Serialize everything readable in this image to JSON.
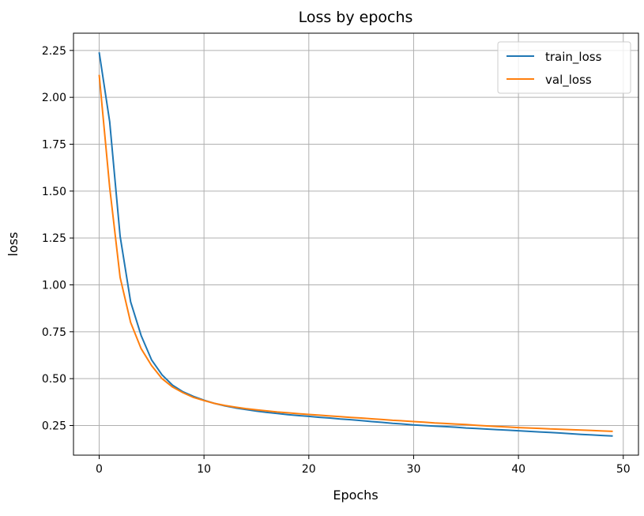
{
  "chart_data": {
    "type": "line",
    "title": "Loss by epochs",
    "xlabel": "Epochs",
    "ylabel": "loss",
    "xlim": [
      -2.45,
      51.45
    ],
    "ylim": [
      0.092,
      2.342
    ],
    "xticks": [
      0,
      10,
      20,
      30,
      40,
      50
    ],
    "yticks": [
      0.25,
      0.5,
      0.75,
      1.0,
      1.25,
      1.5,
      1.75,
      2.0,
      2.25
    ],
    "grid": true,
    "legend_placement": "upper-right",
    "x": [
      0,
      1,
      2,
      3,
      4,
      5,
      6,
      7,
      8,
      9,
      10,
      11,
      12,
      13,
      14,
      15,
      16,
      17,
      18,
      19,
      20,
      21,
      22,
      23,
      24,
      25,
      26,
      27,
      28,
      29,
      30,
      31,
      32,
      33,
      34,
      35,
      36,
      37,
      38,
      39,
      40,
      41,
      42,
      43,
      44,
      45,
      46,
      47,
      48,
      49
    ],
    "series": [
      {
        "name": "train_loss",
        "color": "#1f77b4",
        "values": [
          2.24,
          1.87,
          1.26,
          0.91,
          0.73,
          0.6,
          0.52,
          0.465,
          0.43,
          0.405,
          0.385,
          0.368,
          0.355,
          0.344,
          0.335,
          0.327,
          0.32,
          0.314,
          0.308,
          0.303,
          0.299,
          0.294,
          0.29,
          0.285,
          0.281,
          0.276,
          0.271,
          0.267,
          0.262,
          0.258,
          0.253,
          0.25,
          0.247,
          0.244,
          0.241,
          0.237,
          0.234,
          0.231,
          0.228,
          0.225,
          0.222,
          0.219,
          0.216,
          0.213,
          0.21,
          0.206,
          0.203,
          0.2,
          0.197,
          0.194
        ]
      },
      {
        "name": "val_loss",
        "color": "#ff7f0e",
        "values": [
          2.12,
          1.52,
          1.04,
          0.8,
          0.66,
          0.57,
          0.5,
          0.455,
          0.425,
          0.4,
          0.383,
          0.368,
          0.357,
          0.348,
          0.34,
          0.334,
          0.328,
          0.322,
          0.318,
          0.313,
          0.309,
          0.305,
          0.301,
          0.297,
          0.293,
          0.29,
          0.286,
          0.282,
          0.278,
          0.275,
          0.271,
          0.268,
          0.264,
          0.261,
          0.258,
          0.255,
          0.251,
          0.248,
          0.245,
          0.242,
          0.239,
          0.237,
          0.235,
          0.232,
          0.23,
          0.228,
          0.226,
          0.224,
          0.221,
          0.219
        ]
      }
    ]
  }
}
